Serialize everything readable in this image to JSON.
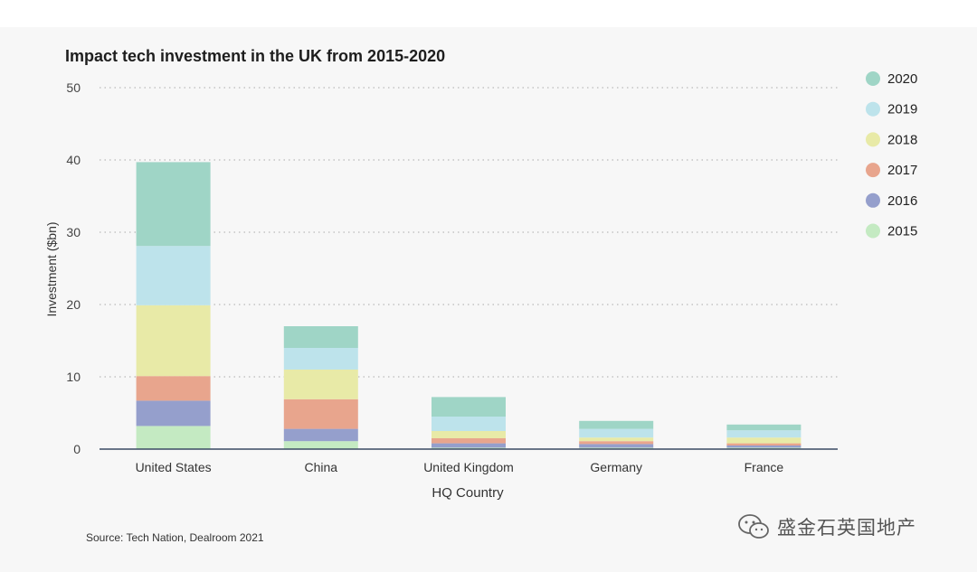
{
  "chart_data": {
    "type": "bar",
    "stacked": true,
    "title": "Impact tech investment in the UK from 2015-2020",
    "xlabel": "HQ Country",
    "ylabel": "Investment ($bn)",
    "ylim": [
      0,
      50
    ],
    "yticks": [
      0,
      10,
      20,
      30,
      40,
      50
    ],
    "grid": true,
    "legend_position": "right",
    "categories": [
      "United States",
      "China",
      "United Kingdom",
      "Germany",
      "France"
    ],
    "series": [
      {
        "name": "2015",
        "color": "#c4eac2",
        "values": [
          3.2,
          1.1,
          0.2,
          0.2,
          0.2
        ]
      },
      {
        "name": "2016",
        "color": "#959fcc",
        "values": [
          3.5,
          1.7,
          0.6,
          0.5,
          0.3
        ]
      },
      {
        "name": "2017",
        "color": "#e8a58d",
        "values": [
          3.4,
          4.1,
          0.7,
          0.4,
          0.3
        ]
      },
      {
        "name": "2018",
        "color": "#e8eaa7",
        "values": [
          9.8,
          4.1,
          1.0,
          0.5,
          0.8
        ]
      },
      {
        "name": "2019",
        "color": "#bde3eb",
        "values": [
          8.2,
          3.0,
          2.0,
          1.2,
          1.0
        ]
      },
      {
        "name": "2020",
        "color": "#9fd5c6",
        "values": [
          11.6,
          3.0,
          2.7,
          1.1,
          0.8
        ]
      }
    ],
    "source": "Source: Tech Nation, Dealroom 2021"
  },
  "watermark": {
    "text": "盛金石英国地产",
    "icon": "wechat-icon"
  }
}
